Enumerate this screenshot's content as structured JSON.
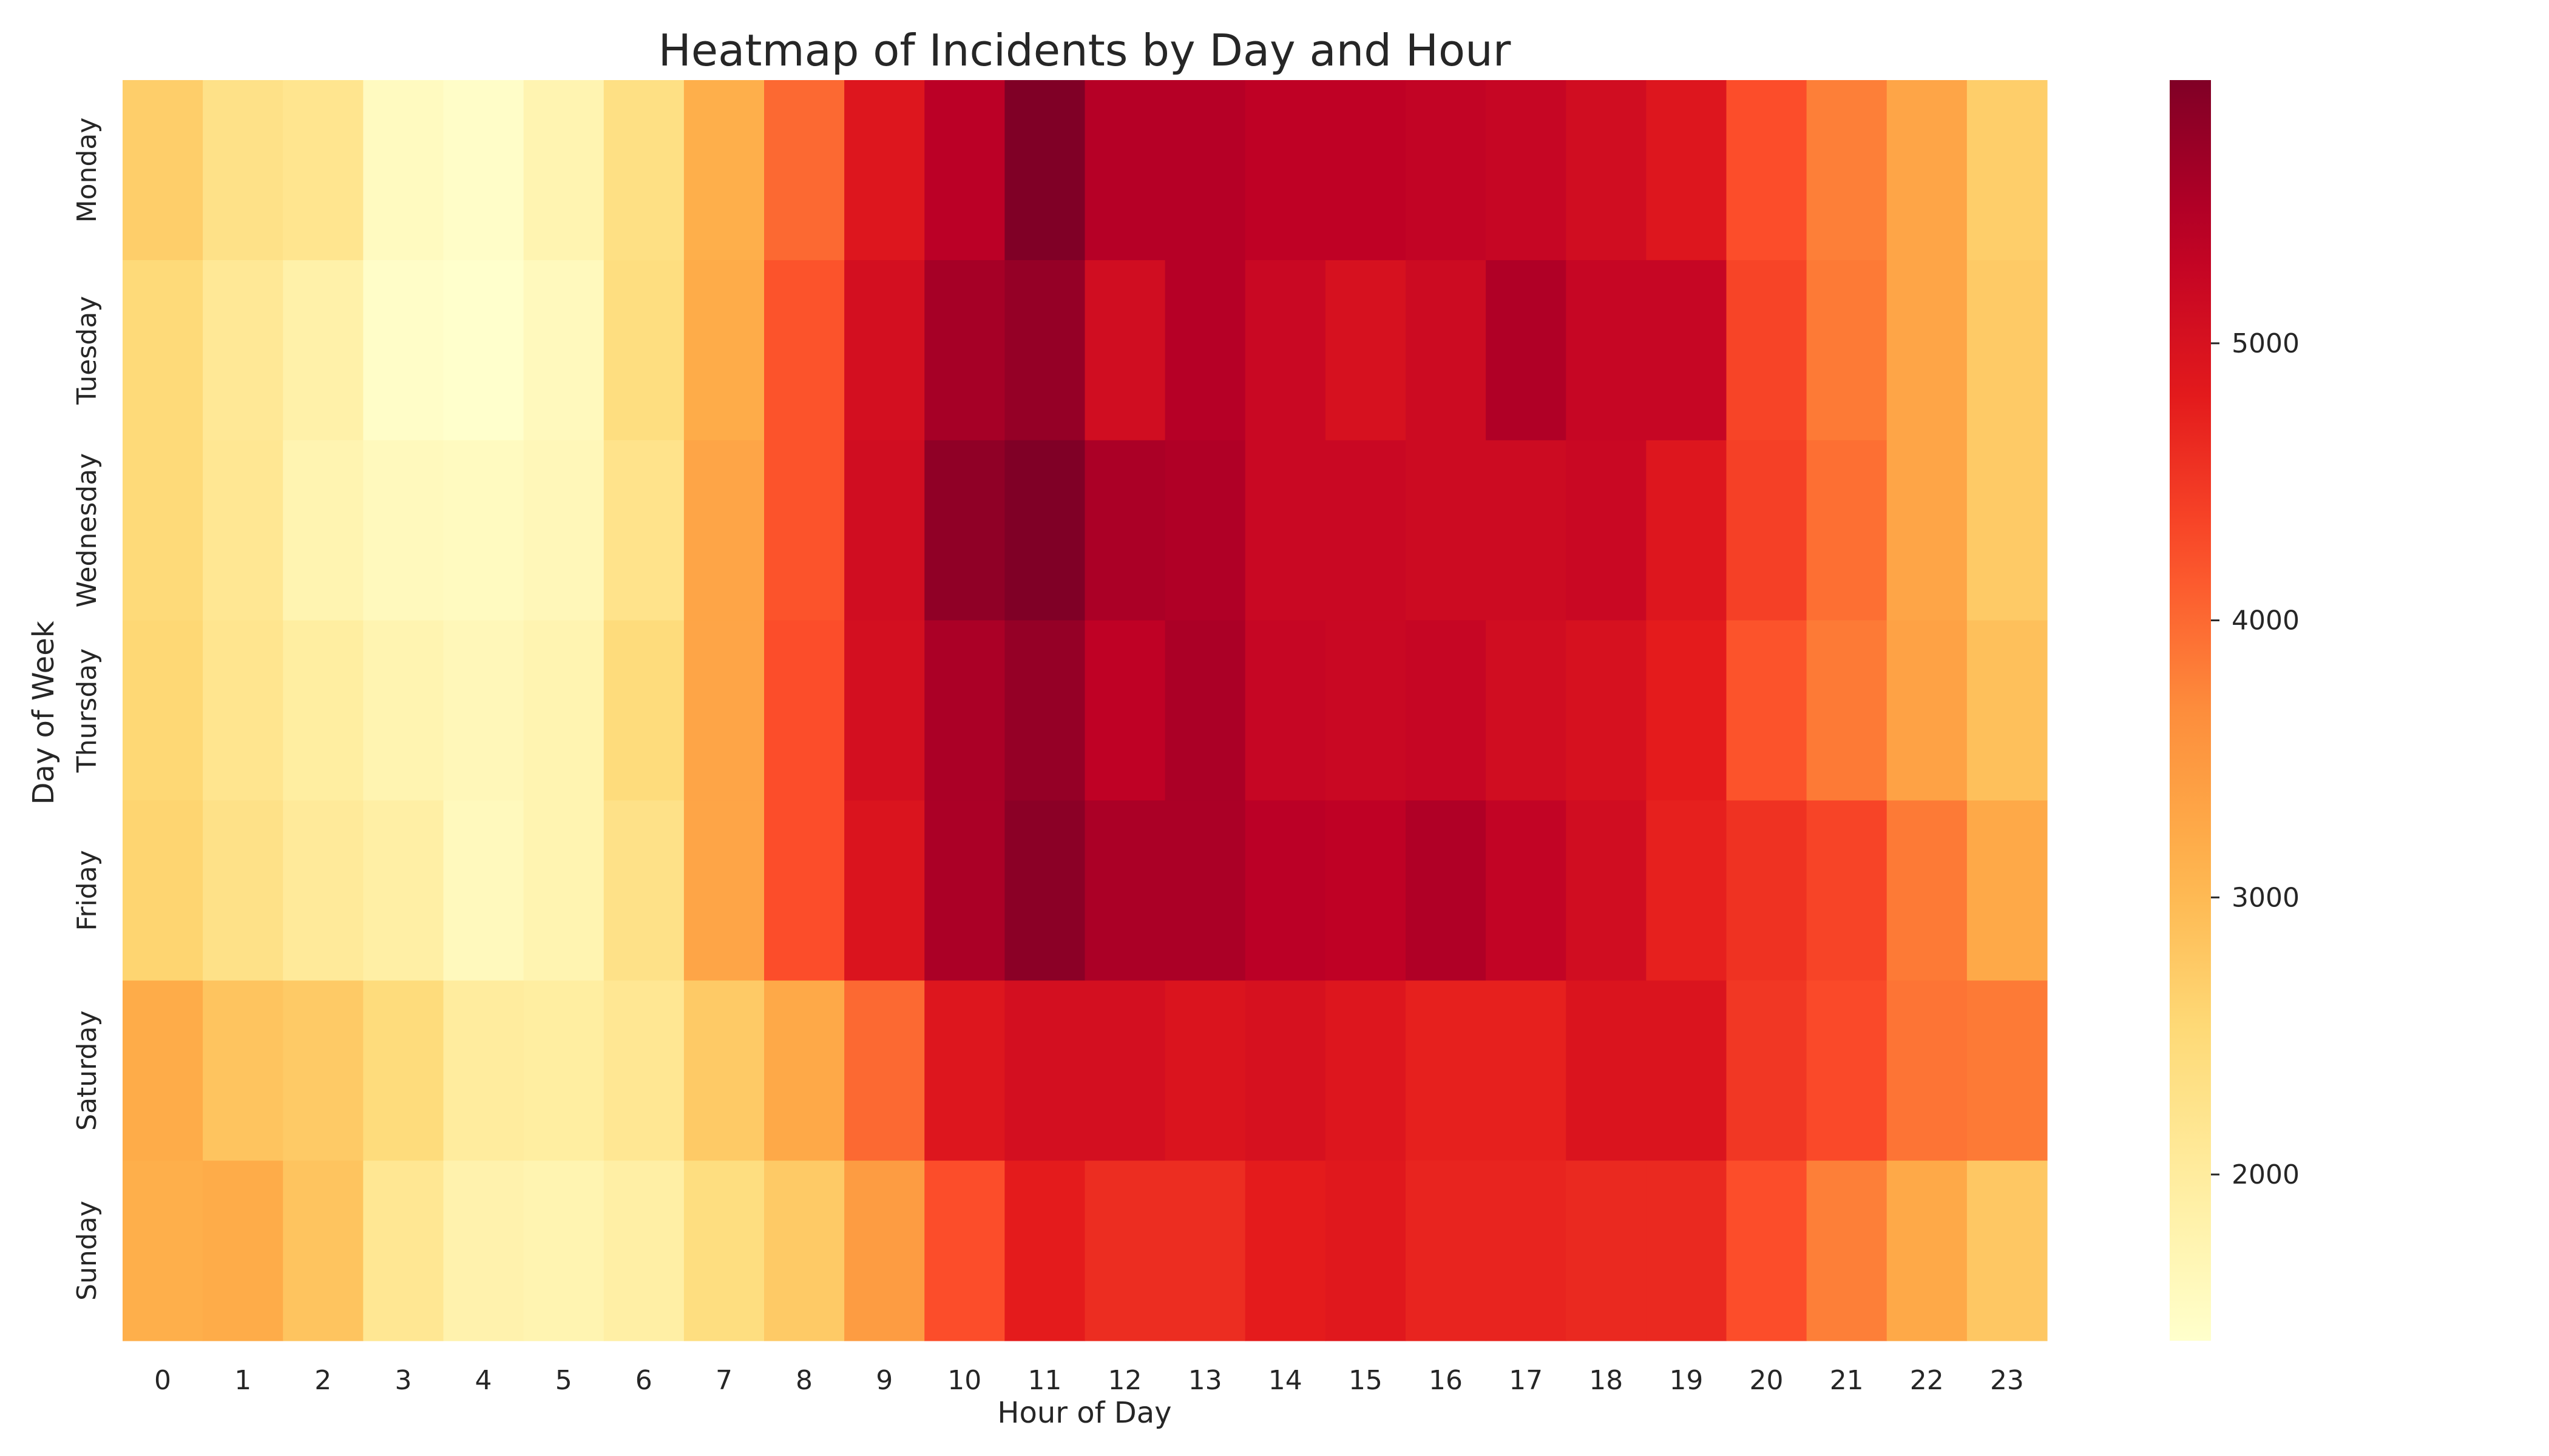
{
  "chart_data": {
    "type": "heatmap",
    "title": "Heatmap of Incidents by Day and Hour",
    "xlabel": "Hour of Day",
    "ylabel": "Day of Week",
    "x_categories": [
      "0",
      "1",
      "2",
      "3",
      "4",
      "5",
      "6",
      "7",
      "8",
      "9",
      "10",
      "11",
      "12",
      "13",
      "14",
      "15",
      "16",
      "17",
      "18",
      "19",
      "20",
      "21",
      "22",
      "23"
    ],
    "y_categories": [
      "Monday",
      "Tuesday",
      "Wednesday",
      "Thursday",
      "Friday",
      "Saturday",
      "Sunday"
    ],
    "values": [
      [
        2700,
        2300,
        2200,
        1550,
        1450,
        1750,
        2350,
        3150,
        4000,
        4900,
        5400,
        5950,
        5450,
        5450,
        5350,
        5350,
        5300,
        5250,
        5100,
        4900,
        4250,
        3800,
        3300,
        2700
      ],
      [
        2500,
        2100,
        1850,
        1450,
        1400,
        1600,
        2400,
        3200,
        4200,
        5050,
        5600,
        5750,
        5100,
        5450,
        5200,
        5000,
        5150,
        5500,
        5250,
        5250,
        4350,
        3850,
        3300,
        2750
      ],
      [
        2500,
        2150,
        1750,
        1600,
        1550,
        1650,
        2250,
        3300,
        4200,
        5100,
        5800,
        5950,
        5550,
        5500,
        5200,
        5200,
        5150,
        5150,
        5200,
        4900,
        4400,
        3950,
        3300,
        2750
      ],
      [
        2550,
        2200,
        1950,
        1750,
        1650,
        1750,
        2450,
        3300,
        4250,
        5050,
        5550,
        5750,
        5350,
        5550,
        5250,
        5200,
        5250,
        5100,
        5000,
        4800,
        4200,
        3850,
        3350,
        2900
      ],
      [
        2600,
        2300,
        2050,
        1900,
        1600,
        1750,
        2300,
        3300,
        4250,
        4950,
        5550,
        5850,
        5550,
        5550,
        5400,
        5350,
        5500,
        5300,
        5100,
        4750,
        4550,
        4350,
        3850,
        3250
      ],
      [
        3200,
        2850,
        2750,
        2450,
        2000,
        1950,
        2150,
        2750,
        3250,
        4000,
        4900,
        5050,
        5050,
        4950,
        5000,
        4900,
        4750,
        4750,
        4950,
        4950,
        4500,
        4300,
        3900,
        3850
      ],
      [
        3150,
        3200,
        2850,
        2150,
        1800,
        1750,
        1900,
        2400,
        2750,
        3450,
        4250,
        4800,
        4600,
        4600,
        4800,
        4850,
        4700,
        4700,
        4650,
        4650,
        4250,
        3800,
        3250,
        2800
      ]
    ],
    "colormap": "YlOrRd",
    "vmin": 1400,
    "vmax": 5950,
    "colorbar_ticks": [
      2000,
      3000,
      4000,
      5000
    ],
    "colorbar_tick_labels": [
      "2000",
      "3000",
      "4000",
      "5000"
    ],
    "grid": false
  }
}
